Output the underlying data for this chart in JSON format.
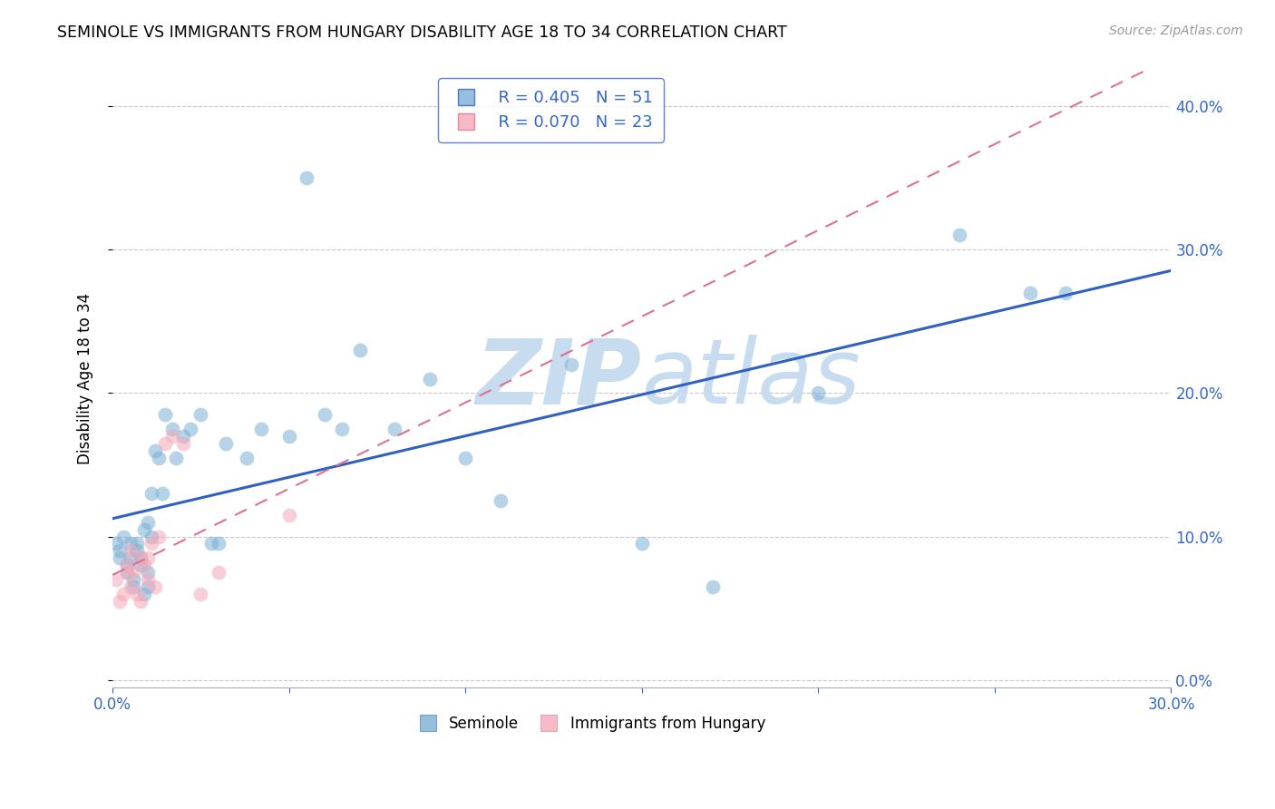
{
  "title": "SEMINOLE VS IMMIGRANTS FROM HUNGARY DISABILITY AGE 18 TO 34 CORRELATION CHART",
  "source": "Source: ZipAtlas.com",
  "ylabel": "Disability Age 18 to 34",
  "xlim": [
    0.0,
    0.3
  ],
  "ylim": [
    -0.005,
    0.425
  ],
  "yticks": [
    0.0,
    0.1,
    0.2,
    0.3,
    0.4
  ],
  "seminole_R": 0.405,
  "seminole_N": 51,
  "hungary_R": 0.07,
  "hungary_N": 23,
  "seminole_color": "#7BAFD4",
  "hungary_color": "#F4A9B8",
  "seminole_line_color": "#3060C0",
  "hungary_line_color": "#E07090",
  "background_color": "#FFFFFF",
  "grid_color": "#C8C8C8",
  "label_color": "#3366CC",
  "watermark_color": "#C8DCF0",
  "seminole_x": [
    0.001,
    0.002,
    0.002,
    0.003,
    0.004,
    0.004,
    0.005,
    0.005,
    0.006,
    0.006,
    0.007,
    0.007,
    0.008,
    0.008,
    0.009,
    0.009,
    0.01,
    0.01,
    0.01,
    0.011,
    0.011,
    0.012,
    0.013,
    0.014,
    0.015,
    0.017,
    0.018,
    0.02,
    0.022,
    0.025,
    0.028,
    0.03,
    0.032,
    0.038,
    0.042,
    0.05,
    0.055,
    0.06,
    0.065,
    0.07,
    0.08,
    0.09,
    0.1,
    0.11,
    0.13,
    0.15,
    0.17,
    0.2,
    0.24,
    0.26,
    0.27
  ],
  "seminole_y": [
    0.095,
    0.09,
    0.085,
    0.1,
    0.08,
    0.075,
    0.095,
    0.085,
    0.065,
    0.07,
    0.09,
    0.095,
    0.08,
    0.085,
    0.06,
    0.105,
    0.11,
    0.075,
    0.065,
    0.1,
    0.13,
    0.16,
    0.155,
    0.13,
    0.185,
    0.175,
    0.155,
    0.17,
    0.175,
    0.185,
    0.095,
    0.095,
    0.165,
    0.155,
    0.175,
    0.17,
    0.35,
    0.185,
    0.175,
    0.23,
    0.175,
    0.21,
    0.155,
    0.125,
    0.22,
    0.095,
    0.065,
    0.2,
    0.31,
    0.27,
    0.27
  ],
  "hungary_x": [
    0.001,
    0.002,
    0.003,
    0.004,
    0.004,
    0.005,
    0.005,
    0.006,
    0.007,
    0.008,
    0.008,
    0.009,
    0.01,
    0.01,
    0.011,
    0.012,
    0.013,
    0.015,
    0.017,
    0.02,
    0.025,
    0.03,
    0.05
  ],
  "hungary_y": [
    0.07,
    0.055,
    0.06,
    0.075,
    0.08,
    0.065,
    0.09,
    0.075,
    0.06,
    0.055,
    0.085,
    0.08,
    0.07,
    0.085,
    0.095,
    0.065,
    0.1,
    0.165,
    0.17,
    0.165,
    0.06,
    0.075,
    0.115
  ]
}
